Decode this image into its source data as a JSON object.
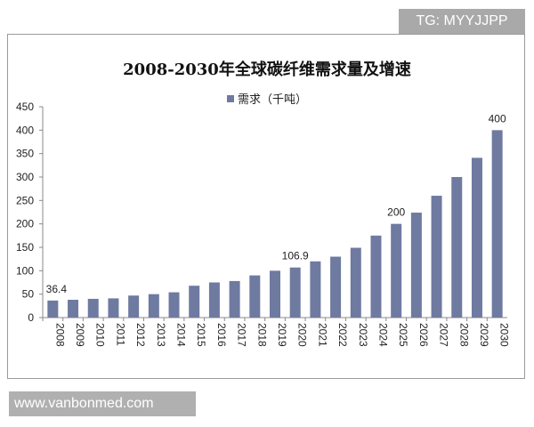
{
  "watermark_top": "TG: MYYJJPP",
  "watermark_bottom": "www.vanbonmed.com",
  "chart_data": {
    "type": "bar",
    "title": "2008-2030年全球碳纤维需求量及增速",
    "xlabel": "",
    "ylabel": "",
    "ylim": [
      0,
      450
    ],
    "yticks": [
      0,
      50,
      100,
      150,
      200,
      250,
      300,
      350,
      400,
      450
    ],
    "grid": false,
    "legend_position": "top",
    "color": "#6f7aa1",
    "categories": [
      "2008",
      "2009",
      "2010",
      "2011",
      "2012",
      "2013",
      "2014",
      "2015",
      "2016",
      "2017",
      "2018",
      "2019",
      "2020",
      "2021",
      "2022",
      "2023",
      "2024",
      "2025",
      "2026",
      "2027",
      "2028",
      "2029",
      "2030"
    ],
    "series": [
      {
        "name": "需求（千吨）",
        "values": [
          36.4,
          38,
          40,
          41,
          47,
          50,
          54,
          68,
          75,
          78,
          90,
          100,
          106.9,
          120,
          130,
          149,
          175,
          200,
          224,
          260,
          300,
          341,
          400
        ]
      }
    ],
    "data_labels": [
      {
        "category": "2008",
        "text": "36.4"
      },
      {
        "category": "2020",
        "text": "106.9"
      },
      {
        "category": "2025",
        "text": "200"
      },
      {
        "category": "2030",
        "text": "400"
      }
    ]
  }
}
